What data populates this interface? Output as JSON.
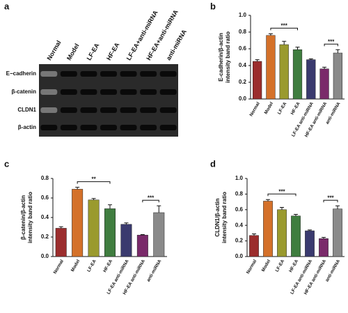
{
  "blot": {
    "panel": "a",
    "lanes": [
      "Normal",
      "Model",
      "LF-EA",
      "HF-EA",
      "LF-EA+anti-miRNA",
      "HF-EA+anti-miRNA",
      "anti-miRNA"
    ],
    "proteins": [
      "E−cadherin",
      "β-catenin",
      "CLDN1",
      "β-actin"
    ]
  },
  "chart_data": [
    {
      "type": "bar",
      "panel": "b",
      "ylabel": [
        "E-cadherin/β-actin",
        "intensity band ratio"
      ],
      "categories": [
        "Normal",
        "Model",
        "LF-EA",
        "HF-EA",
        "LF-EA anti-miRNA",
        "HF-EA anti-miRNA",
        "anti-miRNA"
      ],
      "values": [
        0.45,
        0.76,
        0.65,
        0.59,
        0.47,
        0.36,
        0.55
      ],
      "errors": [
        0.02,
        0.02,
        0.04,
        0.03,
        0.01,
        0.02,
        0.04
      ],
      "colors": [
        "#9b2d2d",
        "#d4712a",
        "#9a9a2e",
        "#3f7d3f",
        "#3a3a6e",
        "#7a2a6a",
        "#8a8a8a"
      ],
      "ylim": [
        0,
        1.0
      ],
      "yticks": [
        {
          "value": 0,
          "label": "0.0"
        },
        0.2,
        0.4,
        0.6,
        0.8,
        {
          "value": 1.0,
          "label": "1.0"
        }
      ],
      "annotations": [
        "***",
        "***"
      ]
    },
    {
      "type": "bar",
      "panel": "c",
      "ylabel": [
        "β-catenin/β-actin",
        "intensity band ratio"
      ],
      "categories": [
        "Normal",
        "Model",
        "LF-EA",
        "HF-EA",
        "LF-EA anti-miRNA",
        "HF-EA anti-miRNA",
        "anti-miRNA"
      ],
      "values": [
        0.29,
        0.69,
        0.58,
        0.49,
        0.33,
        0.22,
        0.45
      ],
      "errors": [
        0.015,
        0.02,
        0.015,
        0.04,
        0.015,
        0.005,
        0.07
      ],
      "colors": [
        "#9b2d2d",
        "#d4712a",
        "#9a9a2e",
        "#3f7d3f",
        "#3a3a6e",
        "#7a2a6a",
        "#8a8a8a"
      ],
      "ylim": [
        0,
        0.8
      ],
      "yticks": [
        {
          "value": 0,
          "label": "0.0"
        },
        0.2,
        0.4,
        0.6,
        0.8
      ],
      "annotations": [
        "**",
        "***"
      ]
    },
    {
      "type": "bar",
      "panel": "d",
      "ylabel": [
        "CLDN1/β-actin",
        "intensity band ratio"
      ],
      "categories": [
        "Normal",
        "Model",
        "LF-EA",
        "HF-EA",
        "LF-EA anti-miRNA",
        "HF-EA anti-miRNA",
        "anti-miRNA"
      ],
      "values": [
        0.27,
        0.71,
        0.6,
        0.52,
        0.33,
        0.23,
        0.61
      ],
      "errors": [
        0.02,
        0.02,
        0.03,
        0.02,
        0.01,
        0.015,
        0.04
      ],
      "colors": [
        "#9b2d2d",
        "#d4712a",
        "#9a9a2e",
        "#3f7d3f",
        "#3a3a6e",
        "#7a2a6a",
        "#8a8a8a"
      ],
      "ylim": [
        0,
        1.0
      ],
      "yticks": [
        {
          "value": 0,
          "label": "0.0"
        },
        0.2,
        0.4,
        0.6,
        0.8,
        {
          "value": 1.0,
          "label": "1.0"
        }
      ],
      "annotations": [
        "***",
        "***"
      ]
    }
  ]
}
